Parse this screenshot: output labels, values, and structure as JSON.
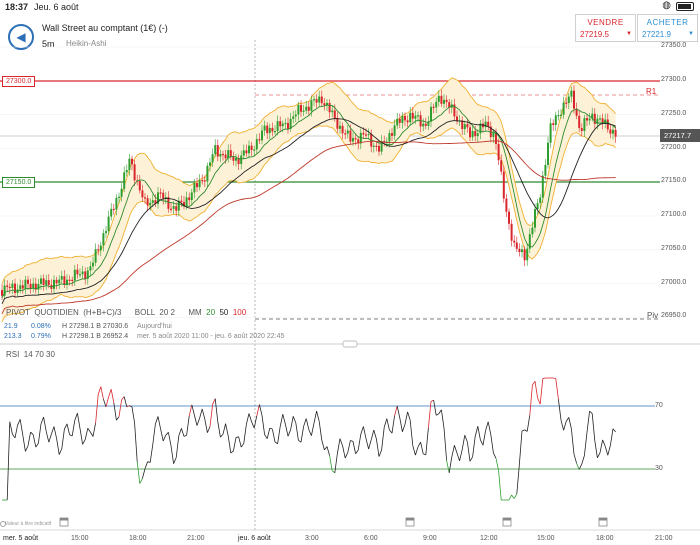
{
  "statusbar": {
    "time": "18:37",
    "date": "Jeu. 6 août"
  },
  "header": {
    "title": "Wall Street au comptant (1€) (-)",
    "timeframe": "5m",
    "chart_type": "Heikin-Ashi"
  },
  "sell": {
    "label": "VENDRE",
    "price": "27219.5"
  },
  "buy": {
    "label": "ACHETER",
    "price": "27221.9"
  },
  "price_axis": {
    "ticks": [
      "27350.0",
      "27300.0",
      "27250.0",
      "27200.0",
      "27150.0",
      "27100.0",
      "27050.0",
      "27000.0",
      "26950.0"
    ],
    "current_price": "27217.7"
  },
  "levels": {
    "resistance_tag": "27300.0",
    "support_tag": "27150.0",
    "r1_label": "R1",
    "piv_label": "Piv"
  },
  "indicators": {
    "pivot_name": "PIVOT",
    "pivot_period": "QUOTIDIEN",
    "pivot_formula": "(H+B+C)/3",
    "boll_name": "BOLL",
    "boll_params": "20 2",
    "mm_name": "MM",
    "mm_20": "20",
    "mm_50": "50",
    "mm_100": "100"
  },
  "stats": {
    "row1_change": "21.9",
    "row1_pct": "0.08%",
    "row1_hl": "H 27298.1  B 27030.6",
    "row1_period": "Aujourd'hui",
    "row2_change": "213.3",
    "row2_pct": "0.79%",
    "row2_hl": "H 27298.1  B 26952.4",
    "row2_period": "mer. 5 août 2020 11:00 - jeu. 6 août 2020 22:45"
  },
  "rsi": {
    "label": "RSI",
    "params": "14  70  30",
    "upper": "70",
    "lower": "30"
  },
  "time_axis": [
    "mer. 5 août",
    "15:00",
    "18:00",
    "21:00",
    "jeu. 6 août",
    "3:00",
    "6:00",
    "9:00",
    "12:00",
    "15:00",
    "18:00",
    "21:00"
  ],
  "event_marker_text": "Valeur à titre indicatif",
  "colors": {
    "up": "#2e9e2e",
    "down": "#d9262c",
    "boll": "#f0b030",
    "mm20": "#2e8b2e",
    "mm50": "#222222",
    "mm100": "#c0392b"
  }
}
